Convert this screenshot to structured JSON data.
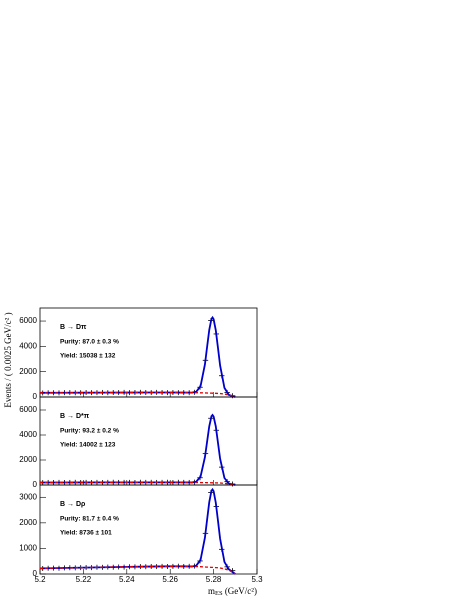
{
  "chart_data": [
    {
      "type": "line",
      "title": "B → Dπ",
      "annotations": [
        "Purity: 87.0 ± 0.3 %",
        "Yield: 15038 ± 132"
      ],
      "ylabel": "Events / ( 0.0025 GeV/c² )",
      "xlim": [
        5.2,
        5.3
      ],
      "xticks": [
        5.2,
        5.22,
        5.24,
        5.26,
        5.28,
        5.3
      ],
      "ylim": [
        0,
        7030
      ],
      "yticks": [
        0,
        2000,
        4000,
        6000
      ],
      "series": [
        {
          "style": "points",
          "color": "#000000",
          "x": [
            5.20125,
            5.20375,
            5.20625,
            5.20875,
            5.21125,
            5.21375,
            5.21625,
            5.21875,
            5.22125,
            5.22375,
            5.22625,
            5.22875,
            5.23125,
            5.23375,
            5.23625,
            5.23875,
            5.24125,
            5.24375,
            5.24625,
            5.24875,
            5.25125,
            5.25375,
            5.25625,
            5.25875,
            5.26125,
            5.26375,
            5.26625,
            5.26875,
            5.27125,
            5.27375,
            5.27625,
            5.27875,
            5.28125,
            5.28375,
            5.28625,
            5.28875
          ],
          "values": [
            320,
            335,
            340,
            330,
            345,
            350,
            335,
            340,
            355,
            345,
            350,
            360,
            340,
            355,
            350,
            365,
            345,
            360,
            370,
            355,
            350,
            365,
            360,
            350,
            355,
            345,
            350,
            340,
            370,
            770,
            2900,
            6040,
            4980,
            1680,
            360,
            100
          ]
        },
        {
          "style": "solid",
          "color": "#0000cc",
          "x": [
            5.2,
            5.21,
            5.22,
            5.23,
            5.24,
            5.25,
            5.26,
            5.265,
            5.27,
            5.272,
            5.274,
            5.276,
            5.277,
            5.278,
            5.279,
            5.2795,
            5.28,
            5.281,
            5.282,
            5.283,
            5.285,
            5.287,
            5.29
          ],
          "values": [
            330,
            335,
            340,
            345,
            350,
            355,
            355,
            350,
            345,
            410,
            870,
            2570,
            3950,
            5300,
            6160,
            6280,
            6150,
            5280,
            3900,
            2490,
            720,
            170,
            0
          ]
        },
        {
          "style": "dashed",
          "color": "#e00000",
          "x": [
            5.2,
            5.21,
            5.22,
            5.23,
            5.24,
            5.25,
            5.26,
            5.265,
            5.27,
            5.272,
            5.274,
            5.276,
            5.277,
            5.278,
            5.279,
            5.2795,
            5.28,
            5.281,
            5.282,
            5.283,
            5.285,
            5.287,
            5.29
          ],
          "values": [
            330,
            335,
            340,
            345,
            350,
            355,
            355,
            350,
            345,
            340,
            330,
            320,
            315,
            310,
            305,
            302,
            300,
            290,
            280,
            270,
            230,
            170,
            0
          ]
        }
      ]
    },
    {
      "type": "line",
      "title": "B → D*π",
      "annotations": [
        "Purity: 93.2 ± 0.2 %",
        "Yield: 14002 ± 123"
      ],
      "xlim": [
        5.2,
        5.3
      ],
      "xticks": [
        5.2,
        5.22,
        5.24,
        5.26,
        5.28,
        5.3
      ],
      "ylim": [
        0,
        7040
      ],
      "yticks": [
        0,
        2000,
        4000,
        6000
      ],
      "series": [
        {
          "style": "points",
          "color": "#000000",
          "x": [
            5.20125,
            5.20375,
            5.20625,
            5.20875,
            5.21125,
            5.21375,
            5.21625,
            5.21875,
            5.22125,
            5.22375,
            5.22625,
            5.22875,
            5.23125,
            5.23375,
            5.23625,
            5.23875,
            5.24125,
            5.24375,
            5.24625,
            5.24875,
            5.25125,
            5.25375,
            5.25625,
            5.25875,
            5.26125,
            5.26375,
            5.26625,
            5.26875,
            5.27125,
            5.27375,
            5.27625,
            5.27875,
            5.28125,
            5.28375,
            5.28625,
            5.28875
          ],
          "values": [
            195,
            205,
            200,
            210,
            200,
            205,
            215,
            200,
            210,
            205,
            215,
            200,
            210,
            220,
            205,
            210,
            215,
            205,
            220,
            210,
            215,
            205,
            210,
            220,
            205,
            215,
            210,
            205,
            230,
            580,
            2510,
            5340,
            4380,
            1430,
            270,
            80
          ]
        },
        {
          "style": "solid",
          "color": "#0000cc",
          "x": [
            5.2,
            5.21,
            5.22,
            5.23,
            5.24,
            5.25,
            5.26,
            5.265,
            5.27,
            5.272,
            5.274,
            5.276,
            5.277,
            5.278,
            5.279,
            5.2795,
            5.28,
            5.281,
            5.282,
            5.283,
            5.285,
            5.287,
            5.29
          ],
          "values": [
            200,
            202,
            205,
            208,
            210,
            212,
            212,
            210,
            205,
            260,
            680,
            2220,
            3460,
            4700,
            5490,
            5600,
            5480,
            4700,
            3400,
            2100,
            560,
            120,
            0
          ]
        },
        {
          "style": "dashed",
          "color": "#e00000",
          "x": [
            5.2,
            5.21,
            5.22,
            5.23,
            5.24,
            5.25,
            5.26,
            5.265,
            5.27,
            5.272,
            5.274,
            5.276,
            5.277,
            5.278,
            5.279,
            5.2795,
            5.28,
            5.281,
            5.282,
            5.283,
            5.285,
            5.287,
            5.29
          ],
          "values": [
            200,
            202,
            205,
            208,
            210,
            212,
            212,
            210,
            205,
            200,
            195,
            190,
            185,
            180,
            178,
            176,
            175,
            170,
            165,
            160,
            130,
            100,
            0
          ]
        }
      ]
    },
    {
      "type": "line",
      "title": "B → Dρ",
      "annotations": [
        "Purity: 81.7 ± 0.4 %",
        "Yield: 8736 ± 101"
      ],
      "xlabel": [
        "m",
        "ES",
        " (GeV/c²)"
      ],
      "xlim": [
        5.2,
        5.3
      ],
      "xticks": [
        5.2,
        5.22,
        5.24,
        5.26,
        5.28,
        5.3
      ],
      "ylim": [
        0,
        3480
      ],
      "yticks": [
        0,
        1000,
        2000,
        3000
      ],
      "series": [
        {
          "style": "points",
          "color": "#000000",
          "x": [
            5.20125,
            5.20375,
            5.20625,
            5.20875,
            5.21125,
            5.21375,
            5.21625,
            5.21875,
            5.22125,
            5.22375,
            5.22625,
            5.22875,
            5.23125,
            5.23375,
            5.23625,
            5.23875,
            5.24125,
            5.24375,
            5.24625,
            5.24875,
            5.25125,
            5.25375,
            5.25625,
            5.25875,
            5.26125,
            5.26375,
            5.26625,
            5.26875,
            5.27125,
            5.27375,
            5.27625,
            5.27875,
            5.28125,
            5.28375,
            5.28625,
            5.28875
          ],
          "values": [
            215,
            225,
            230,
            225,
            240,
            245,
            240,
            250,
            255,
            250,
            265,
            260,
            270,
            265,
            275,
            270,
            285,
            280,
            290,
            285,
            295,
            290,
            300,
            295,
            300,
            305,
            295,
            300,
            310,
            510,
            1590,
            3190,
            2640,
            965,
            280,
            130
          ]
        },
        {
          "style": "solid",
          "color": "#0000cc",
          "x": [
            5.2,
            5.21,
            5.22,
            5.23,
            5.24,
            5.25,
            5.26,
            5.265,
            5.27,
            5.272,
            5.274,
            5.276,
            5.277,
            5.278,
            5.279,
            5.2795,
            5.28,
            5.281,
            5.282,
            5.283,
            5.285,
            5.287,
            5.29
          ],
          "values": [
            220,
            235,
            250,
            265,
            280,
            290,
            300,
            300,
            295,
            324,
            556,
            1419,
            2121,
            2812,
            3249,
            3308,
            3244,
            2792,
            2096,
            1379,
            471,
            184,
            0
          ]
        },
        {
          "style": "dashed",
          "color": "#e00000",
          "x": [
            5.2,
            5.21,
            5.22,
            5.23,
            5.24,
            5.25,
            5.26,
            5.265,
            5.27,
            5.272,
            5.274,
            5.276,
            5.277,
            5.278,
            5.279,
            5.2795,
            5.28,
            5.281,
            5.282,
            5.283,
            5.285,
            5.287,
            5.29
          ],
          "values": [
            220,
            235,
            250,
            265,
            280,
            290,
            300,
            300,
            295,
            290,
            285,
            275,
            270,
            265,
            260,
            258,
            255,
            250,
            245,
            235,
            200,
            150,
            0
          ]
        }
      ]
    }
  ]
}
